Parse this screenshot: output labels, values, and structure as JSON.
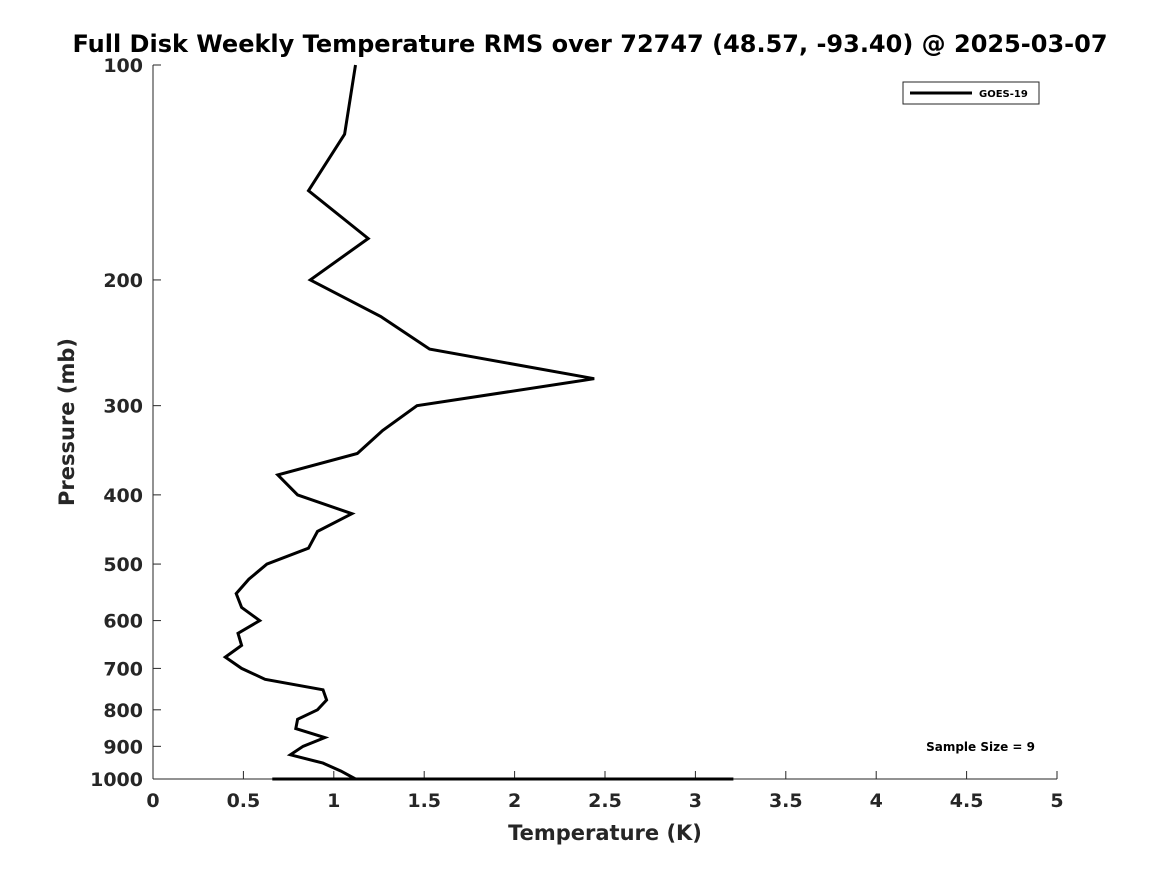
{
  "chart_data": {
    "type": "line",
    "title": "Full Disk Weekly Temperature RMS over 72747 (48.57, -93.40) @ 2025-03-07",
    "xlabel": "Temperature (K)",
    "ylabel": "Pressure (mb)",
    "xlim": [
      0,
      5
    ],
    "ylim": [
      1000,
      100
    ],
    "yscale": "log",
    "y_reversed": true,
    "grid": false,
    "legend_position": "top-right",
    "xticks": [
      0,
      0.5,
      1,
      1.5,
      2,
      2.5,
      3,
      3.5,
      4,
      4.5,
      5
    ],
    "xtick_labels": [
      "0",
      "0.5",
      "1",
      "1.5",
      "2",
      "2.5",
      "3",
      "3.5",
      "4",
      "4.5",
      "5"
    ],
    "yticks": [
      100,
      200,
      300,
      400,
      500,
      600,
      700,
      800,
      900,
      1000
    ],
    "ytick_labels": [
      "100",
      "200",
      "300",
      "400",
      "500",
      "600",
      "700",
      "800",
      "900",
      "1000"
    ],
    "series": [
      {
        "name": "GOES-19",
        "color": "#000000",
        "x": [
          1.12,
          1.06,
          0.86,
          1.19,
          0.87,
          1.26,
          1.53,
          2.44,
          1.46,
          1.27,
          1.13,
          0.69,
          0.8,
          1.1,
          0.91,
          0.86,
          0.63,
          0.53,
          0.46,
          0.49,
          0.59,
          0.47,
          0.49,
          0.4,
          0.49,
          0.62,
          0.94,
          0.96,
          0.91,
          0.8,
          0.79,
          0.95,
          0.83,
          0.76,
          0.94,
          1.04,
          1.12,
          0.99,
          0.99,
          0.66,
          1.07,
          1.27,
          3.21,
          2.69
        ],
        "y": [
          100,
          125,
          150,
          175,
          200,
          225,
          250,
          275,
          300,
          325,
          350,
          375,
          400,
          425,
          450,
          475,
          500,
          525,
          550,
          575,
          600,
          625,
          650,
          675,
          700,
          725,
          750,
          775,
          800,
          825,
          850,
          875,
          900,
          925,
          950,
          975,
          1000,
          1000,
          1000,
          1000,
          1000,
          1000,
          1000,
          1000
        ]
      }
    ],
    "annotations": [
      "Sample Size = 9"
    ]
  }
}
